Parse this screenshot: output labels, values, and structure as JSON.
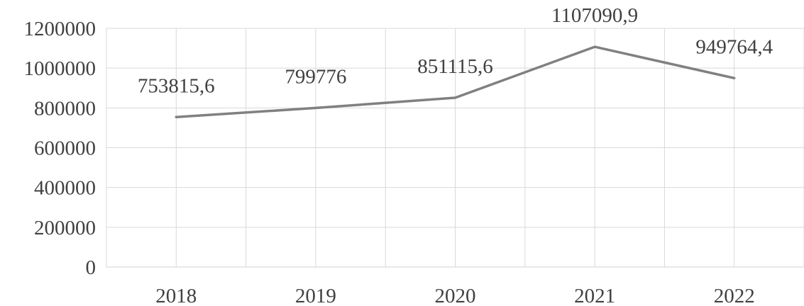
{
  "chart_data": {
    "type": "line",
    "categories": [
      "2018",
      "2019",
      "2020",
      "2021",
      "2022"
    ],
    "series": [
      {
        "values": [
          753815.6,
          799776,
          851115.6,
          1107090.9,
          949764.4
        ],
        "labels": [
          "753815,6",
          "799776",
          "851115,6",
          "1107090,9",
          "949764,4"
        ]
      }
    ],
    "y_ticks": [
      "0",
      "200000",
      "400000",
      "600000",
      "800000",
      "1000000",
      "1200000"
    ],
    "ylim": [
      0,
      1200000
    ],
    "grid": true,
    "line_color": "#808080",
    "grid_color": "#d9d9d9",
    "text_color": "#404040"
  }
}
